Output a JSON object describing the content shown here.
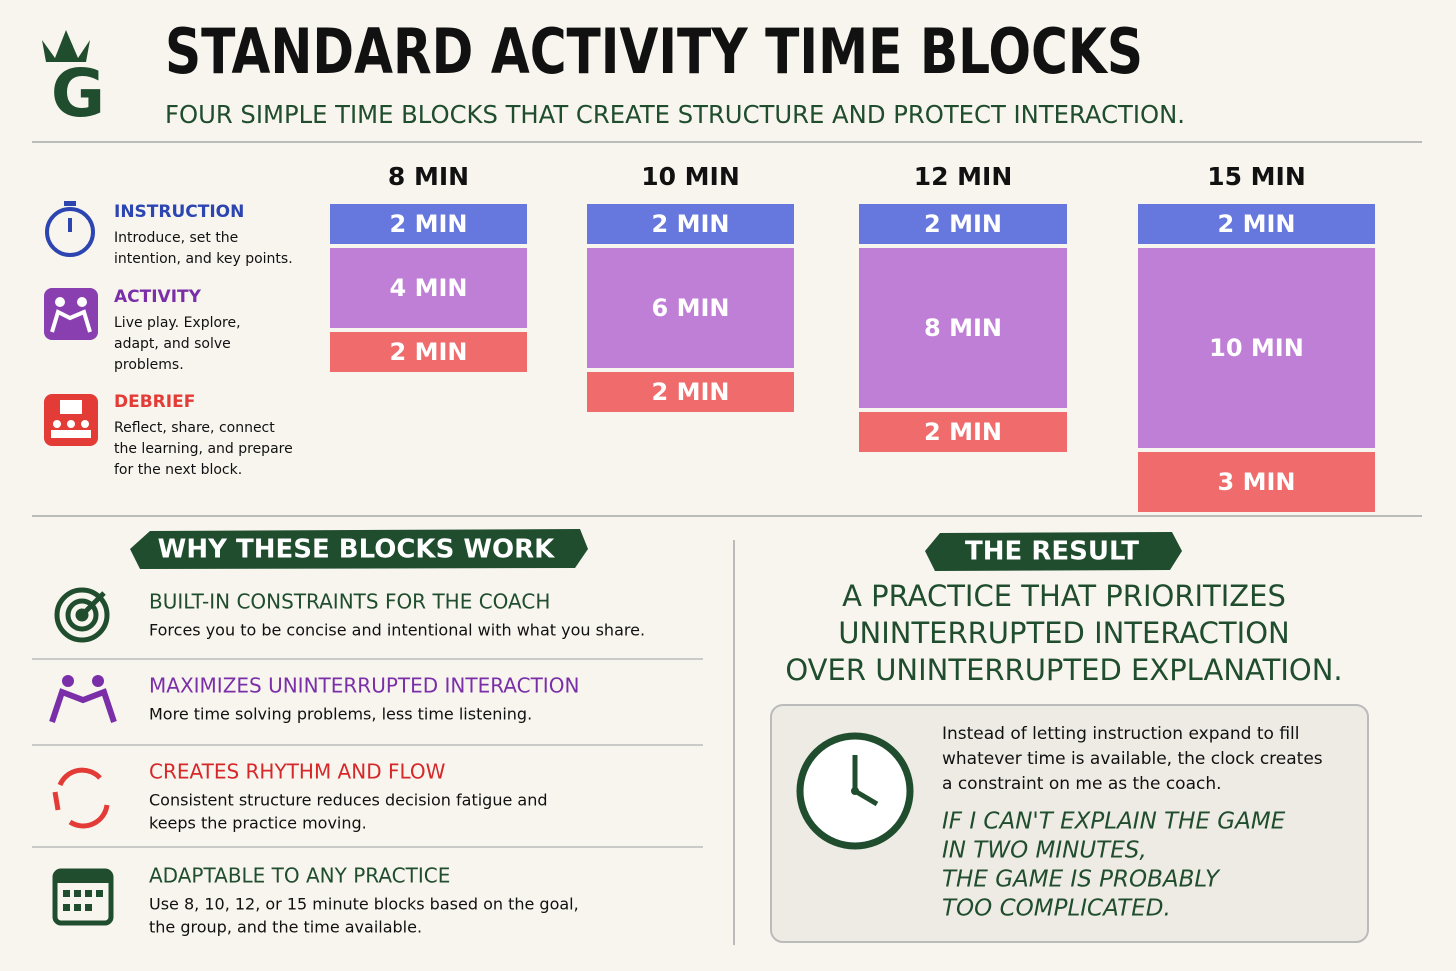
{
  "header": {
    "logo": "G",
    "title": "STANDARD ACTIVITY TIME BLOCKS",
    "subtitle": "FOUR SIMPLE TIME BLOCKS THAT CREATE STRUCTURE AND PROTECT INTERACTION."
  },
  "legend": [
    {
      "title": "INSTRUCTION",
      "lines": [
        "Introduce, set the",
        "intention, and key points."
      ]
    },
    {
      "title": "ACTIVITY",
      "lines": [
        "Live play. Explore,",
        "adapt, and solve",
        "problems."
      ]
    },
    {
      "title": "DEBRIEF",
      "lines": [
        "Reflect, share, connect",
        "the learning, and prepare",
        "for the next block."
      ]
    }
  ],
  "columns": [
    {
      "label": "8 MIN",
      "blocks": [
        {
          "label": "2 MIN",
          "value": 2
        },
        {
          "label": "4 MIN",
          "value": 4
        },
        {
          "label": "2 MIN",
          "value": 2
        }
      ]
    },
    {
      "label": "10 MIN",
      "blocks": [
        {
          "label": "2 MIN",
          "value": 2
        },
        {
          "label": "6 MIN",
          "value": 6
        },
        {
          "label": "2 MIN",
          "value": 2
        }
      ]
    },
    {
      "label": "12 MIN",
      "blocks": [
        {
          "label": "2 MIN",
          "value": 2
        },
        {
          "label": "8 MIN",
          "value": 8
        },
        {
          "label": "2 MIN",
          "value": 2
        }
      ]
    },
    {
      "label": "15 MIN",
      "blocks": [
        {
          "label": "2 MIN",
          "value": 2
        },
        {
          "label": "10 MIN",
          "value": 10
        },
        {
          "label": "3 MIN",
          "value": 3
        }
      ]
    }
  ],
  "why": {
    "title": "WHY THESE BLOCKS WORK",
    "items": [
      {
        "title": "BUILT-IN CONSTRAINTS FOR THE COACH",
        "lines": [
          "Forces you to be concise and intentional with what you share."
        ]
      },
      {
        "title": "MAXIMIZES UNINTERRUPTED INTERACTION",
        "lines": [
          "More time solving problems, less time listening."
        ]
      },
      {
        "title": "CREATES RHYTHM AND FLOW",
        "lines": [
          "Consistent structure reduces decision fatigue and",
          "keeps the practice moving."
        ]
      },
      {
        "title": "ADAPTABLE TO ANY PRACTICE",
        "lines": [
          "Use 8, 10, 12, or 15 minute blocks based on the goal,",
          "the group, and the time available."
        ]
      }
    ]
  },
  "result": {
    "title": "THE RESULT",
    "statement": [
      "A PRACTICE THAT PRIORITIZES",
      "UNINTERRUPTED INTERACTION",
      "OVER UNINTERRUPTED EXPLANATION."
    ],
    "body": [
      "Instead of letting instruction expand to fill",
      "whatever time is available, the clock creates",
      "a constraint on me as the coach."
    ],
    "quote": [
      "IF I CAN'T EXPLAIN THE GAME",
      "IN TWO MINUTES,",
      "THE GAME IS PROBABLY",
      "TOO COMPLICATED."
    ]
  }
}
